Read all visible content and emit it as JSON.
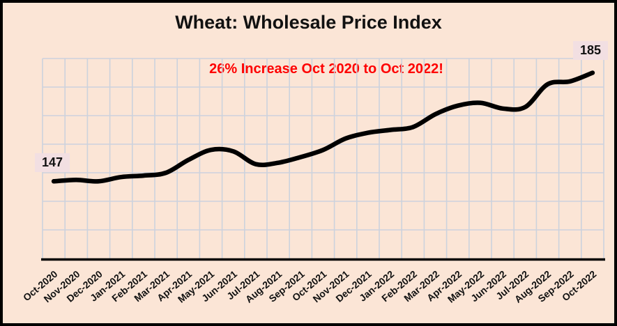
{
  "chart_data": {
    "type": "line",
    "title": "Wheat: Wholesale Price Index",
    "annotation": "26% Increase Oct 2020 to Oct 2022!",
    "categories": [
      "Oct-2020",
      "Nov-2020",
      "Dec-2020",
      "Jan-2021",
      "Feb-2021",
      "Mar-2021",
      "Apr-2021",
      "May-2021",
      "Jun-2021",
      "Jul-2021",
      "Aug-2021",
      "Sep-2021",
      "Oct-2021",
      "Nov-2021",
      "Dec-2021",
      "Jan-2022",
      "Feb-2022",
      "Mar-2022",
      "Apr-2022",
      "May-2022",
      "Jun-2022",
      "Jul-2022",
      "Aug-2022",
      "Sep-2022",
      "Oct-2022"
    ],
    "series": [
      {
        "name": "Wheat Wholesale Price Index",
        "values": [
          147,
          147.5,
          147,
          148.5,
          149,
          150,
          154.5,
          158,
          157.5,
          153,
          153.5,
          155.5,
          158,
          162,
          164,
          165,
          166,
          170.5,
          173.5,
          174.5,
          172.5,
          173,
          181,
          182,
          185
        ]
      }
    ],
    "point_labels": {
      "first": "147",
      "last": "185"
    },
    "xlabel": "",
    "ylabel": "",
    "ylim": [
      120,
      190
    ],
    "y_grid_step": 10,
    "grid": "on",
    "legend": "none",
    "line_smoothing": true,
    "colors": {
      "background": "#fbe5d6",
      "line": "#000000",
      "grid": "#ccd2dd",
      "axis": "#000000",
      "annotation_text": "#fe0000",
      "point_label_bg": "#f2dfe2",
      "title_text": "#111111"
    }
  }
}
